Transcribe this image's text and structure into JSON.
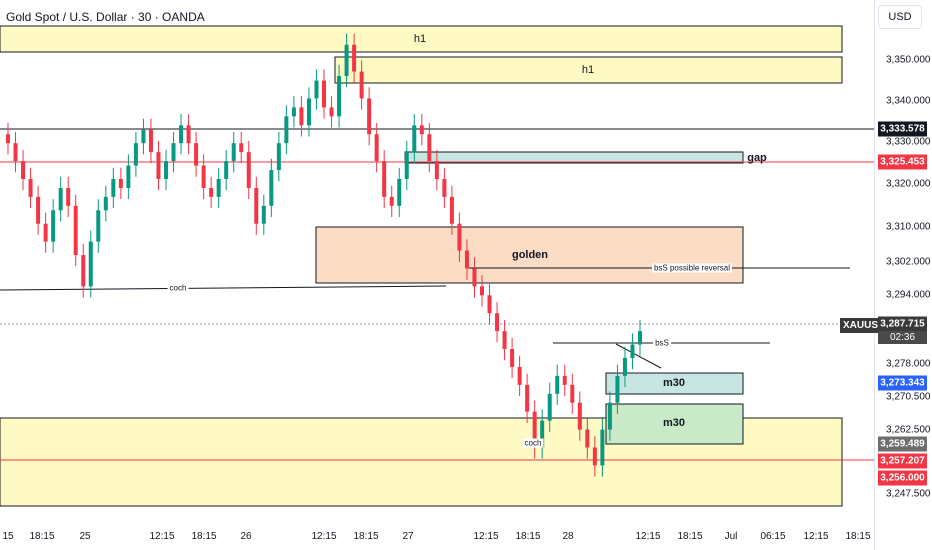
{
  "header": {
    "title": "Gold Spot / U.S. Dollar · 30 · OANDA",
    "currency_button": "USD"
  },
  "price_axis": {
    "ticks": [
      "3,350.000",
      "3,340.000",
      "3,330.000",
      "3,320.000",
      "3,310.000",
      "3,302.000",
      "3,294.000",
      "3,278.000",
      "3,270.500",
      "3,262.500",
      "3,247.500"
    ],
    "badges": [
      {
        "label": "3,333.578",
        "color": "#131722"
      },
      {
        "label": "3,325.453",
        "color": "#f23645"
      },
      {
        "label": "3,287.715",
        "color": "#3a3a3a"
      },
      {
        "label": "3,273.343",
        "color": "#2962ff"
      },
      {
        "label": "3,259.489",
        "color": "#6e6e6e"
      },
      {
        "label": "3,257.207",
        "color": "#f23645"
      },
      {
        "label": "3,256.000",
        "color": "#f23645"
      }
    ],
    "countdown": "02:36",
    "symbol": "XAUUSD"
  },
  "time_axis": {
    "ticks": [
      "15",
      "18:15",
      "25",
      "12:15",
      "18:15",
      "26",
      "12:15",
      "18:15",
      "27",
      "12:15",
      "18:15",
      "28",
      "12:15",
      "18:15",
      "Jul",
      "06:15",
      "12:15",
      "18:15"
    ]
  },
  "drawings": {
    "h1_top": "h1",
    "h1_second": "h1",
    "gap": "gap",
    "golden": "golden",
    "bss_possible_reversal": "bsS possible reversal",
    "coch_left": "coch",
    "coch_bottom": "coch",
    "bss": "bsS",
    "m30_upper": "m30",
    "m30_lower": "m30"
  },
  "chart_data": {
    "type": "candlestick",
    "title": "Gold Spot / U.S. Dollar · 30 · OANDA",
    "y_range": [
      3244,
      3362
    ],
    "last_price": 3287.715,
    "levels": [
      3333.578,
      3325.453,
      3273.343,
      3259.489,
      3257.207,
      3256.0
    ],
    "series_close": [
      3330,
      3326,
      3322,
      3318,
      3312,
      3308,
      3315,
      3320,
      3316,
      3305,
      3298,
      3308,
      3315,
      3318,
      3322,
      3320,
      3325,
      3330,
      3333,
      3328,
      3322,
      3326,
      3330,
      3334,
      3330,
      3325,
      3320,
      3318,
      3322,
      3326,
      3330,
      3328,
      3320,
      3312,
      3316,
      3324,
      3330,
      3336,
      3338,
      3334,
      3340,
      3344,
      3338,
      3336,
      3345,
      3352,
      3346,
      3340,
      3332,
      3326,
      3318,
      3316,
      3322,
      3328,
      3334,
      3332,
      3326,
      3322,
      3318,
      3312,
      3306,
      3302,
      3298,
      3296,
      3292,
      3288,
      3284,
      3280,
      3276,
      3270,
      3262,
      3268,
      3274,
      3278,
      3276,
      3272,
      3266,
      3262,
      3258,
      3266,
      3272,
      3278,
      3282,
      3285,
      3288
    ]
  }
}
